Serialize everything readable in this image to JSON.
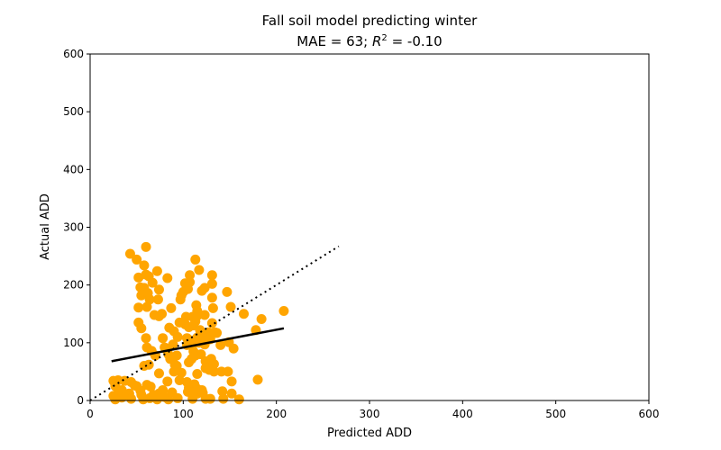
{
  "chart_data": {
    "type": "scatter",
    "title": "Fall soil model predicting winter",
    "subtitle_prefix": "MAE = 63; ",
    "subtitle_r": "R",
    "subtitle_exp": "2",
    "subtitle_suffix": " = -0.10",
    "xlabel": "Predicted ADD",
    "ylabel": "Actual ADD",
    "xlim": [
      0,
      600
    ],
    "ylim": [
      0,
      600
    ],
    "xticks": [
      "0",
      "100",
      "200",
      "300",
      "400",
      "500",
      "600"
    ],
    "yticks": [
      "0",
      "100",
      "200",
      "300",
      "400",
      "500",
      "600"
    ],
    "grid": false,
    "point_color": "#ffa500",
    "series": [
      {
        "values_xy": [
          [
            43,
            254
          ],
          [
            60,
            266
          ],
          [
            50,
            244
          ],
          [
            58,
            234
          ],
          [
            52,
            213
          ],
          [
            60,
            218
          ],
          [
            63,
            215
          ],
          [
            72,
            224
          ],
          [
            67,
            204
          ],
          [
            54,
            196
          ],
          [
            58,
            195
          ],
          [
            74,
            192
          ],
          [
            55,
            182
          ],
          [
            62,
            186
          ],
          [
            73,
            175
          ],
          [
            64,
            175
          ],
          [
            52,
            161
          ],
          [
            61,
            162
          ],
          [
            69,
            148
          ],
          [
            77,
            150
          ],
          [
            74,
            146
          ],
          [
            52,
            135
          ],
          [
            55,
            125
          ],
          [
            60,
            108
          ],
          [
            61,
            92
          ],
          [
            66,
            86
          ],
          [
            70,
            78
          ],
          [
            63,
            62
          ],
          [
            58,
            60
          ],
          [
            74,
            47
          ],
          [
            65,
            24
          ],
          [
            61,
            27
          ],
          [
            50,
            25
          ],
          [
            54,
            17
          ],
          [
            44,
            32
          ],
          [
            37,
            34
          ],
          [
            30,
            35
          ],
          [
            25,
            34
          ],
          [
            27,
            25
          ],
          [
            34,
            18
          ],
          [
            30,
            12
          ],
          [
            25,
            8
          ],
          [
            34,
            5
          ],
          [
            27,
            2
          ],
          [
            42,
            12
          ],
          [
            44,
            3
          ],
          [
            48,
            26
          ],
          [
            55,
            10
          ],
          [
            57,
            2
          ],
          [
            64,
            4
          ],
          [
            68,
            10
          ],
          [
            72,
            2
          ],
          [
            74,
            12
          ],
          [
            78,
            18
          ],
          [
            80,
            6
          ],
          [
            83,
            33
          ],
          [
            83,
            212
          ],
          [
            87,
            160
          ],
          [
            85,
            126
          ],
          [
            90,
            120
          ],
          [
            89,
            97
          ],
          [
            80,
            92
          ],
          [
            78,
            108
          ],
          [
            82,
            88
          ],
          [
            84,
            80
          ],
          [
            86,
            72
          ],
          [
            84,
            2
          ],
          [
            88,
            14
          ],
          [
            94,
            4
          ],
          [
            96,
            35
          ],
          [
            90,
            50
          ],
          [
            91,
            62
          ],
          [
            93,
            78
          ],
          [
            94,
            110
          ],
          [
            96,
            135
          ],
          [
            97,
            175
          ],
          [
            98,
            182
          ],
          [
            100,
            188
          ],
          [
            102,
            203
          ],
          [
            107,
            205
          ],
          [
            107,
            217
          ],
          [
            105,
            193
          ],
          [
            103,
            145
          ],
          [
            102,
            132
          ],
          [
            106,
            127
          ],
          [
            104,
            108
          ],
          [
            106,
            66
          ],
          [
            104,
            96
          ],
          [
            104,
            32
          ],
          [
            106,
            22
          ],
          [
            105,
            15
          ],
          [
            110,
            3
          ],
          [
            113,
            244
          ],
          [
            117,
            226
          ],
          [
            120,
            190
          ],
          [
            123,
            195
          ],
          [
            114,
            165
          ],
          [
            115,
            155
          ],
          [
            116,
            148
          ],
          [
            110,
            145
          ],
          [
            113,
            137
          ],
          [
            111,
            130
          ],
          [
            118,
            122
          ],
          [
            120,
            115
          ],
          [
            115,
            109
          ],
          [
            112,
            100
          ],
          [
            108,
            104
          ],
          [
            117,
            100
          ],
          [
            123,
            97
          ],
          [
            111,
            85
          ],
          [
            113,
            78
          ],
          [
            119,
            80
          ],
          [
            124,
            68
          ],
          [
            109,
            72
          ],
          [
            115,
            46
          ],
          [
            112,
            28
          ],
          [
            115,
            20
          ],
          [
            120,
            18
          ],
          [
            115,
            12
          ],
          [
            110,
            14
          ],
          [
            121,
            13
          ],
          [
            124,
            3
          ],
          [
            129,
            3
          ],
          [
            124,
            56
          ],
          [
            123,
            148
          ],
          [
            127,
            118
          ],
          [
            129,
            106
          ],
          [
            131,
            217
          ],
          [
            131,
            202
          ],
          [
            131,
            178
          ],
          [
            132,
            160
          ],
          [
            131,
            134
          ],
          [
            134,
            118
          ],
          [
            136,
            117
          ],
          [
            130,
            72
          ],
          [
            133,
            63
          ],
          [
            133,
            50
          ],
          [
            141,
            50
          ],
          [
            140,
            96
          ],
          [
            142,
            16
          ],
          [
            143,
            3
          ],
          [
            147,
            188
          ],
          [
            148,
            50
          ],
          [
            149,
            101
          ],
          [
            151,
            162
          ],
          [
            152,
            12
          ],
          [
            152,
            33
          ],
          [
            154,
            90
          ],
          [
            160,
            2
          ],
          [
            165,
            150
          ],
          [
            178,
            122
          ],
          [
            180,
            36
          ],
          [
            184,
            141
          ],
          [
            208,
            155
          ],
          [
            128,
            53
          ],
          [
            98,
            48
          ],
          [
            93,
            60
          ],
          [
            124,
            108
          ],
          [
            134,
            117
          ]
        ]
      }
    ],
    "fit_line": {
      "x": [
        23,
        208
      ],
      "y": [
        68,
        125
      ],
      "color": "#000000",
      "style": "solid"
    },
    "identity_line": {
      "x": [
        0,
        267
      ],
      "y": [
        0,
        267
      ],
      "color": "#000000",
      "style": "dotted"
    }
  }
}
